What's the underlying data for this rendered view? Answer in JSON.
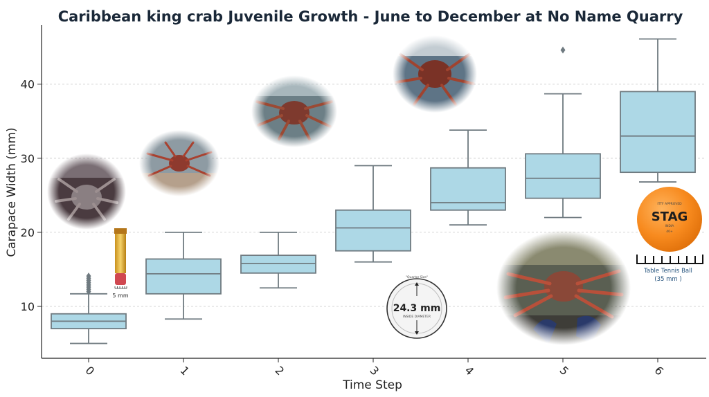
{
  "chart_data": {
    "type": "box",
    "title": "Caribbean king crab Juvenile Growth - June to December at No Name Quarry",
    "xlabel": "Time Step",
    "ylabel": "Carapace Width (mm)",
    "ylim": [
      3,
      48
    ],
    "yticks": [
      10,
      20,
      30,
      40
    ],
    "grid": "horizontal dashed",
    "box_color": "#add8e6",
    "edge_color": "#6f7a80",
    "categories": [
      "0",
      "1",
      "2",
      "3",
      "4",
      "5",
      "6"
    ],
    "boxes": [
      {
        "category": "0",
        "whisker_low": 5.0,
        "q1": 7.0,
        "median": 8.0,
        "q3": 9.0,
        "whisker_high": 11.7,
        "outliers": [
          12.0,
          12.3,
          12.6,
          12.9,
          13.2,
          13.5,
          13.8,
          14.1
        ]
      },
      {
        "category": "1",
        "whisker_low": 8.3,
        "q1": 11.7,
        "median": 14.4,
        "q3": 16.4,
        "whisker_high": 20.0,
        "outliers": []
      },
      {
        "category": "2",
        "whisker_low": 12.5,
        "q1": 14.5,
        "median": 15.8,
        "q3": 16.9,
        "whisker_high": 20.0,
        "outliers": []
      },
      {
        "category": "3",
        "whisker_low": 16.0,
        "q1": 17.5,
        "median": 20.6,
        "q3": 23.0,
        "whisker_high": 29.0,
        "outliers": []
      },
      {
        "category": "4",
        "whisker_low": 21.0,
        "q1": 23.0,
        "median": 24.0,
        "q3": 28.7,
        "whisker_high": 33.8,
        "outliers": []
      },
      {
        "category": "5",
        "whisker_low": 22.0,
        "q1": 24.6,
        "median": 27.3,
        "q3": 30.6,
        "whisker_high": 38.7,
        "outliers": [
          44.6
        ]
      },
      {
        "category": "6",
        "whisker_low": 26.8,
        "q1": 28.1,
        "median": 33.0,
        "q3": 39.0,
        "whisker_high": 46.1,
        "outliers": []
      }
    ]
  },
  "annotations": {
    "scale_5mm": "5 mm",
    "coin_top": "\"Quarter Size\"",
    "coin_size": "24.3 mm",
    "coin_sub": "INSIDE DIAMETER",
    "ball_label": "Table Tennis Ball",
    "ball_size": "(35 mm )",
    "ball_brand": "STAG",
    "ball_approval": "ITTF APPROVED",
    "ball_country": "INDIA",
    "ball_grade": "40+"
  },
  "colors": {
    "crab_shell": "#9a4a38",
    "crab_leg": "#b8503a",
    "ball": "#f78a1e"
  }
}
